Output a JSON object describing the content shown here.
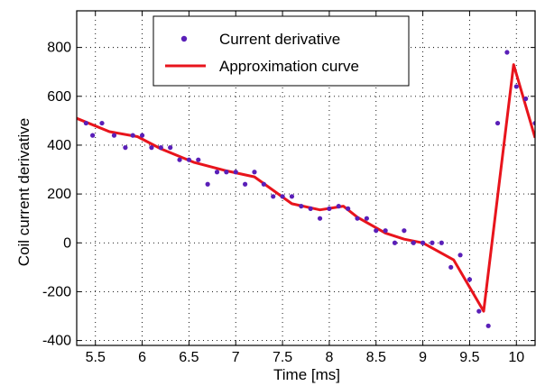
{
  "chart_data": {
    "type": "line",
    "title": "",
    "xlabel": "Time [ms]",
    "ylabel": "Coil current derivative",
    "xlim": [
      5.3,
      10.2
    ],
    "ylim": [
      -420,
      950
    ],
    "xticks": [
      5.5,
      6,
      6.5,
      7,
      7.5,
      8,
      8.5,
      9,
      9.5,
      10
    ],
    "xtick_labels": [
      "5.5",
      "6",
      "6.5",
      "7",
      "7.5",
      "8",
      "8.5",
      "9",
      "9.5",
      "10"
    ],
    "yticks": [
      -400,
      -200,
      0,
      200,
      400,
      600,
      800
    ],
    "ytick_labels": [
      "-400",
      "-200",
      "0",
      "200",
      "400",
      "600",
      "800"
    ],
    "grid": true,
    "legend_position": "top-center",
    "series": [
      {
        "name": "Current derivative",
        "kind": "scatter",
        "color": "#5a1fb8",
        "x": [
          5.4,
          5.47,
          5.57,
          5.7,
          5.82,
          5.9,
          6.0,
          6.1,
          6.2,
          6.3,
          6.4,
          6.5,
          6.6,
          6.7,
          6.8,
          6.9,
          7.0,
          7.1,
          7.2,
          7.3,
          7.4,
          7.5,
          7.6,
          7.7,
          7.8,
          7.9,
          8.0,
          8.1,
          8.2,
          8.3,
          8.4,
          8.5,
          8.6,
          8.7,
          8.8,
          8.9,
          9.0,
          9.1,
          9.2,
          9.3,
          9.4,
          9.5,
          9.6,
          9.7,
          9.8,
          9.9,
          10.0,
          10.1,
          10.2
        ],
        "y": [
          490,
          440,
          490,
          440,
          390,
          440,
          440,
          390,
          390,
          390,
          340,
          340,
          340,
          240,
          290,
          290,
          290,
          240,
          290,
          240,
          190,
          190,
          190,
          150,
          140,
          100,
          140,
          150,
          140,
          100,
          100,
          50,
          50,
          0,
          50,
          0,
          0,
          0,
          0,
          -100,
          -50,
          -150,
          -280,
          -340,
          490,
          780,
          640,
          590,
          490
        ]
      },
      {
        "name": "Approximation curve",
        "kind": "line",
        "color": "#e8141c",
        "x": [
          5.3,
          5.65,
          5.95,
          6.2,
          6.55,
          6.9,
          7.2,
          7.6,
          7.9,
          8.15,
          8.3,
          8.6,
          8.8,
          9.0,
          9.33,
          9.65,
          9.97,
          10.2
        ],
        "y": [
          510,
          455,
          435,
          385,
          330,
          295,
          270,
          160,
          135,
          150,
          105,
          40,
          15,
          0,
          -70,
          -280,
          730,
          430
        ]
      }
    ]
  }
}
